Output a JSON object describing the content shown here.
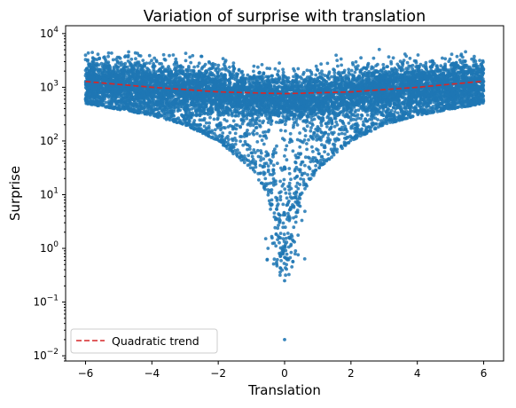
{
  "chart_data": {
    "type": "scatter",
    "title": "Variation of surprise with translation",
    "xlabel": "Translation",
    "ylabel": "Surprise",
    "xlim": [
      -6.6,
      6.6
    ],
    "ylim": [
      0.008,
      14000
    ],
    "yscale": "log",
    "grid": false,
    "legend_position": "bottom-left",
    "x_ticks": [
      -6,
      -4,
      -2,
      0,
      2,
      4,
      6
    ],
    "x_tick_labels": [
      "−6",
      "−4",
      "−2",
      "0",
      "2",
      "4",
      "6"
    ],
    "y_ticks": [
      0.01,
      0.1,
      1,
      10,
      100,
      1000,
      10000
    ],
    "y_tick_labels": [
      {
        "base": "10",
        "exp": "−2"
      },
      {
        "base": "10",
        "exp": "−1"
      },
      {
        "base": "10",
        "exp": "0"
      },
      {
        "base": "10",
        "exp": "1"
      },
      {
        "base": "10",
        "exp": "2"
      },
      {
        "base": "10",
        "exp": "3"
      },
      {
        "base": "10",
        "exp": "4"
      }
    ],
    "series": [
      {
        "name": "",
        "kind": "scatter",
        "color": "#1f77b4",
        "x_range": [
          -6,
          6
        ],
        "median_by_x": [
          {
            "x": -6,
            "y": 1300
          },
          {
            "x": -4,
            "y": 1100
          },
          {
            "x": -2,
            "y": 850
          },
          {
            "x": -1,
            "y": 700
          },
          {
            "x": 0,
            "y": 600
          },
          {
            "x": 1,
            "y": 700
          },
          {
            "x": 2,
            "y": 850
          },
          {
            "x": 4,
            "y": 1100
          },
          {
            "x": 6,
            "y": 1300
          }
        ],
        "lower_envelope": [
          {
            "x": -6,
            "y": 500
          },
          {
            "x": -4,
            "y": 300
          },
          {
            "x": -3,
            "y": 200
          },
          {
            "x": -2,
            "y": 100
          },
          {
            "x": -1,
            "y": 30
          },
          {
            "x": -0.5,
            "y": 10
          },
          {
            "x": 0,
            "y": 0.25
          },
          {
            "x": 0.5,
            "y": 10
          },
          {
            "x": 1,
            "y": 30
          },
          {
            "x": 2,
            "y": 100
          },
          {
            "x": 3,
            "y": 200
          },
          {
            "x": 4,
            "y": 300
          },
          {
            "x": 6,
            "y": 500
          }
        ],
        "upper_envelope": [
          {
            "x": -6,
            "y": 4500
          },
          {
            "x": -2,
            "y": 4800
          },
          {
            "x": 0,
            "y": 3500
          },
          {
            "x": 4,
            "y": 6000
          },
          {
            "x": 6,
            "y": 4500
          }
        ],
        "outliers": [
          {
            "x": 0,
            "y": 0.02
          },
          {
            "x": 0,
            "y": 0.25
          }
        ]
      },
      {
        "name": "Quadratic trend",
        "kind": "line",
        "style": "dashed",
        "color": "#d62728",
        "points": [
          {
            "x": -6,
            "y": 1280
          },
          {
            "x": -4,
            "y": 1000
          },
          {
            "x": -2,
            "y": 820
          },
          {
            "x": 0,
            "y": 760
          },
          {
            "x": 2,
            "y": 820
          },
          {
            "x": 4,
            "y": 1000
          },
          {
            "x": 6,
            "y": 1300
          }
        ]
      }
    ]
  }
}
